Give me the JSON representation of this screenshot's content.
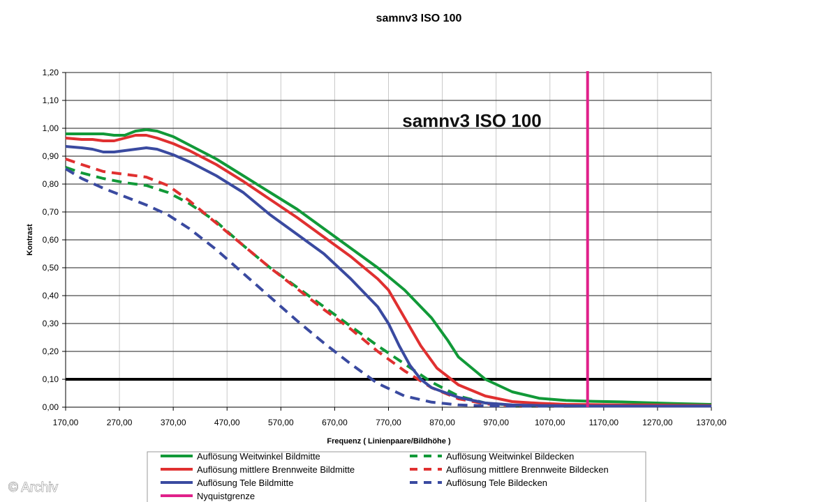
{
  "chart_data": {
    "type": "line",
    "title": "samnv3 ISO 100",
    "inner_title": "samnv3 ISO 100",
    "xlabel": "Frequenz ( Linienpaare/Bildhöhe )",
    "ylabel": "Kontrast",
    "xlim": [
      170,
      1370
    ],
    "ylim": [
      0,
      1.2
    ],
    "x_ticks": [
      "170,00",
      "270,00",
      "370,00",
      "470,00",
      "570,00",
      "670,00",
      "770,00",
      "870,00",
      "970,00",
      "1070,00",
      "1170,00",
      "1270,00",
      "1370,00"
    ],
    "y_ticks": [
      "0,00",
      "0,10",
      "0,20",
      "0,30",
      "0,40",
      "0,50",
      "0,60",
      "0,70",
      "0,80",
      "0,90",
      "1,00",
      "1,10",
      "1,20"
    ],
    "grid": true,
    "reference_line": {
      "y": 0.1,
      "color": "#000000"
    },
    "nyquist": {
      "name": "Nyquistgrenze",
      "x": 1140,
      "color": "#e0208a"
    },
    "legend_position": "bottom",
    "series": [
      {
        "name": "Auflösung Weitwinkel Bildmitte",
        "color": "#119938",
        "style": "solid",
        "x": [
          170,
          200,
          220,
          240,
          260,
          280,
          300,
          320,
          340,
          370,
          400,
          450,
          500,
          550,
          600,
          650,
          700,
          750,
          800,
          850,
          880,
          900,
          950,
          1000,
          1050,
          1100,
          1150,
          1200,
          1250,
          1300,
          1370
        ],
        "y": [
          0.98,
          0.98,
          0.98,
          0.98,
          0.975,
          0.975,
          0.99,
          0.995,
          0.99,
          0.97,
          0.94,
          0.89,
          0.83,
          0.77,
          0.71,
          0.64,
          0.57,
          0.5,
          0.42,
          0.32,
          0.24,
          0.18,
          0.1,
          0.055,
          0.032,
          0.024,
          0.021,
          0.019,
          0.016,
          0.013,
          0.01
        ]
      },
      {
        "name": "Auflösung mittlere Brennweite Bildmitte",
        "color": "#e03030",
        "style": "solid",
        "x": [
          170,
          200,
          220,
          240,
          260,
          280,
          300,
          320,
          340,
          370,
          400,
          450,
          500,
          550,
          600,
          650,
          700,
          750,
          770,
          800,
          830,
          860,
          900,
          950,
          1000,
          1050,
          1100,
          1150,
          1200,
          1250,
          1300,
          1370
        ],
        "y": [
          0.965,
          0.96,
          0.96,
          0.955,
          0.955,
          0.965,
          0.975,
          0.975,
          0.965,
          0.945,
          0.92,
          0.87,
          0.81,
          0.745,
          0.68,
          0.61,
          0.54,
          0.46,
          0.42,
          0.32,
          0.22,
          0.14,
          0.08,
          0.04,
          0.02,
          0.014,
          0.01,
          0.009,
          0.008,
          0.008,
          0.007,
          0.006
        ]
      },
      {
        "name": "Auflösung Tele Bildmitte",
        "color": "#3a4aa0",
        "style": "solid",
        "x": [
          170,
          200,
          220,
          240,
          260,
          280,
          300,
          320,
          340,
          370,
          400,
          450,
          500,
          550,
          600,
          650,
          700,
          750,
          770,
          790,
          810,
          830,
          850,
          900,
          950,
          1000,
          1050,
          1100,
          1150,
          1200,
          1250,
          1300,
          1370
        ],
        "y": [
          0.935,
          0.93,
          0.925,
          0.915,
          0.915,
          0.92,
          0.925,
          0.93,
          0.925,
          0.905,
          0.88,
          0.83,
          0.77,
          0.69,
          0.62,
          0.55,
          0.46,
          0.36,
          0.3,
          0.22,
          0.15,
          0.1,
          0.07,
          0.035,
          0.015,
          0.008,
          0.006,
          0.005,
          0.004,
          0.004,
          0.004,
          0.004,
          0.004
        ]
      },
      {
        "name": "Auflösung Weitwinkel Bildecken",
        "color": "#119938",
        "style": "dashed",
        "x": [
          170,
          200,
          240,
          280,
          320,
          360,
          400,
          450,
          500,
          550,
          600,
          650,
          700,
          750,
          800,
          850,
          900,
          950,
          1000,
          1050,
          1100
        ],
        "y": [
          0.86,
          0.84,
          0.82,
          0.805,
          0.795,
          0.77,
          0.73,
          0.665,
          0.58,
          0.5,
          0.43,
          0.36,
          0.29,
          0.22,
          0.155,
          0.09,
          0.04,
          0.015,
          0.007,
          0.005,
          0.005
        ]
      },
      {
        "name": "Auflösung mittlere Brennweite Bildecken",
        "color": "#e03030",
        "style": "dashed",
        "x": [
          170,
          200,
          240,
          280,
          320,
          360,
          400,
          450,
          500,
          550,
          600,
          650,
          700,
          750,
          800,
          850,
          900,
          950,
          1000,
          1050,
          1100
        ],
        "y": [
          0.89,
          0.87,
          0.845,
          0.835,
          0.825,
          0.795,
          0.74,
          0.66,
          0.58,
          0.5,
          0.425,
          0.35,
          0.28,
          0.2,
          0.13,
          0.07,
          0.03,
          0.012,
          0.006,
          0.005,
          0.005
        ]
      },
      {
        "name": "Auflösung Tele Bildecken",
        "color": "#3a4aa0",
        "style": "dashed",
        "x": [
          170,
          200,
          240,
          280,
          320,
          360,
          400,
          450,
          500,
          550,
          600,
          650,
          700,
          750,
          800,
          850,
          900,
          950,
          1000,
          1050,
          1100
        ],
        "y": [
          0.855,
          0.82,
          0.785,
          0.755,
          0.725,
          0.69,
          0.64,
          0.565,
          0.48,
          0.395,
          0.31,
          0.23,
          0.155,
          0.085,
          0.04,
          0.018,
          0.008,
          0.005,
          0.004,
          0.004,
          0.004
        ]
      }
    ]
  },
  "legend": {
    "items": [
      {
        "label": "Auflösung Weitwinkel Bildmitte",
        "color": "#119938",
        "style": "solid"
      },
      {
        "label": "Auflösung Weitwinkel Bildecken",
        "color": "#119938",
        "style": "dashed"
      },
      {
        "label": "Auflösung mittlere Brennweite Bildmitte",
        "color": "#e03030",
        "style": "solid"
      },
      {
        "label": "Auflösung mittlere Brennweite Bildecken",
        "color": "#e03030",
        "style": "dashed"
      },
      {
        "label": "Auflösung Tele Bildmitte",
        "color": "#3a4aa0",
        "style": "solid"
      },
      {
        "label": "Auflösung Tele Bildecken",
        "color": "#3a4aa0",
        "style": "dashed"
      },
      {
        "label": "Nyquistgrenze",
        "color": "#e0208a",
        "style": "solid"
      }
    ]
  },
  "watermark": "© Archiv"
}
